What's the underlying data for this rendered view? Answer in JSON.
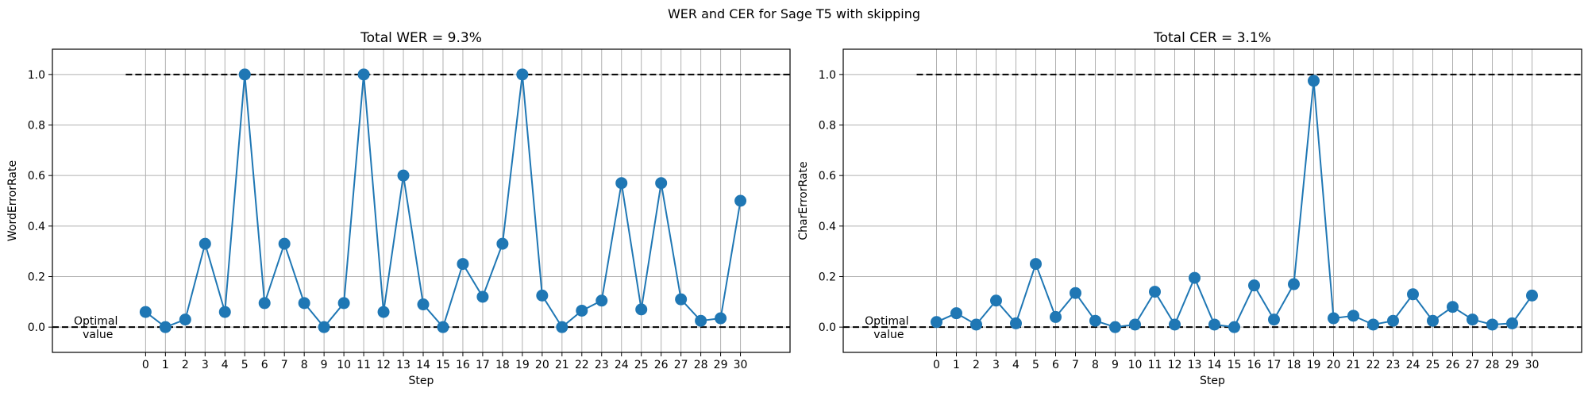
{
  "figure": {
    "suptitle": "WER and CER for Sage T5 with skipping"
  },
  "chart_data": [
    {
      "type": "line",
      "title": "Total WER = 9.3%",
      "xlabel": "Step",
      "ylabel": "WordErrorRate",
      "ylim": [
        -0.1,
        1.1
      ],
      "yticks": [
        0.0,
        0.2,
        0.4,
        0.6,
        0.8,
        1.0
      ],
      "x": [
        0,
        1,
        2,
        3,
        4,
        5,
        6,
        7,
        8,
        9,
        10,
        11,
        12,
        13,
        14,
        15,
        16,
        17,
        18,
        19,
        20,
        21,
        22,
        23,
        24,
        25,
        26,
        27,
        28,
        29,
        30
      ],
      "values": [
        0.06,
        0.0,
        0.03,
        0.33,
        0.06,
        1.0,
        0.095,
        0.33,
        0.095,
        0.0,
        0.095,
        1.0,
        0.06,
        0.6,
        0.09,
        0.0,
        0.25,
        0.12,
        0.33,
        1.0,
        0.125,
        0.0,
        0.065,
        0.105,
        0.57,
        0.07,
        0.57,
        0.11,
        0.025,
        0.035,
        0.5
      ],
      "color": "#1f77b4",
      "reference_lines": [
        1.0,
        0.0
      ],
      "annotation": [
        "Optimal",
        "value"
      ],
      "grid": true
    },
    {
      "type": "line",
      "title": "Total CER = 3.1%",
      "xlabel": "Step",
      "ylabel": "CharErrorRate",
      "ylim": [
        -0.1,
        1.1
      ],
      "yticks": [
        0.0,
        0.2,
        0.4,
        0.6,
        0.8,
        1.0
      ],
      "x": [
        0,
        1,
        2,
        3,
        4,
        5,
        6,
        7,
        8,
        9,
        10,
        11,
        12,
        13,
        14,
        15,
        16,
        17,
        18,
        19,
        20,
        21,
        22,
        23,
        24,
        25,
        26,
        27,
        28,
        29,
        30
      ],
      "values": [
        0.02,
        0.055,
        0.01,
        0.105,
        0.015,
        0.25,
        0.04,
        0.135,
        0.025,
        0.0,
        0.01,
        0.14,
        0.01,
        0.195,
        0.01,
        0.0,
        0.165,
        0.03,
        0.17,
        0.975,
        0.035,
        0.045,
        0.01,
        0.025,
        0.13,
        0.025,
        0.08,
        0.03,
        0.01,
        0.015,
        0.125
      ],
      "color": "#1f77b4",
      "reference_lines": [
        1.0,
        0.0
      ],
      "annotation": [
        "Optimal",
        "value"
      ],
      "grid": true
    }
  ]
}
